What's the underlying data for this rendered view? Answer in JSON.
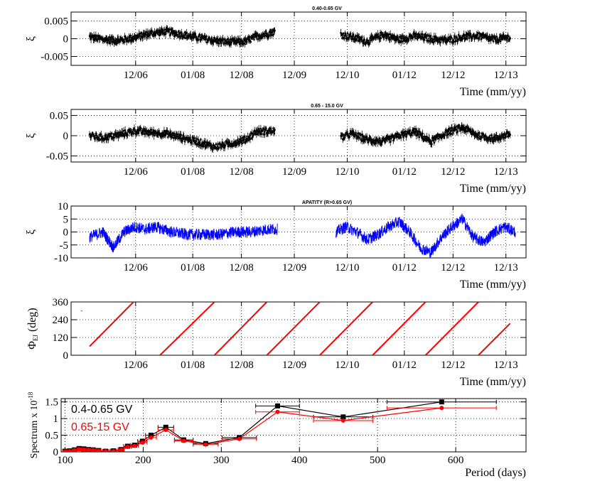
{
  "chart_data": [
    {
      "type": "scatter",
      "title": "0.40-0.65 GV",
      "xlabel": "Time (mm/yy)",
      "ylabel": "ξ",
      "xlim": [
        2005.7,
        2014.3
      ],
      "ylim": [
        -0.0075,
        0.0075
      ],
      "yticks": [
        -0.005,
        0,
        0.005
      ],
      "ytick_labels": [
        "-0.005",
        "0",
        "0.005"
      ],
      "xticks": [
        2006.92,
        2008.0,
        2008.92,
        2009.92,
        2010.92,
        2012.0,
        2012.92,
        2013.92
      ],
      "xtick_labels": [
        "12/06",
        "01/08",
        "12/08",
        "12/09",
        "12/10",
        "01/12",
        "12/12",
        "12/13"
      ],
      "grid": true,
      "color": "#000000",
      "segments": [
        {
          "x": [
            2006.05,
            2006.3,
            2006.6,
            2006.9,
            2007.2,
            2007.5,
            2007.8,
            2008.1,
            2008.4,
            2008.7,
            2009.0,
            2009.2,
            2009.55
          ],
          "y": [
            0.0005,
            -0.0002,
            -0.0005,
            0.0003,
            0.0015,
            0.002,
            0.0012,
            0.0003,
            -0.0005,
            -0.001,
            -0.0008,
            0.0006,
            0.002
          ]
        },
        {
          "x": [
            2010.8,
            2011.0,
            2011.3,
            2011.6,
            2011.9,
            2012.2,
            2012.5,
            2012.8,
            2013.1,
            2013.4,
            2013.7,
            2014.0
          ],
          "y": [
            0.0012,
            0.0005,
            -0.0008,
            0.0012,
            -0.0003,
            0.0008,
            0.0,
            -0.0005,
            0.0005,
            0.0008,
            -0.0003,
            0.0004
          ]
        }
      ]
    },
    {
      "type": "scatter",
      "title": "0.65 - 15.0 GV",
      "xlabel": "Time (mm/yy)",
      "ylabel": "ξ",
      "xlim": [
        2005.7,
        2014.3
      ],
      "ylim": [
        -0.065,
        0.065
      ],
      "yticks": [
        -0.05,
        0,
        0.05
      ],
      "ytick_labels": [
        "-0.05",
        "0",
        "0.05"
      ],
      "xticks": [
        2006.92,
        2008.0,
        2008.92,
        2009.92,
        2010.92,
        2012.0,
        2012.92,
        2013.92
      ],
      "xtick_labels": [
        "12/06",
        "01/08",
        "12/08",
        "12/09",
        "12/10",
        "01/12",
        "12/12",
        "12/13"
      ],
      "grid": true,
      "color": "#000000",
      "segments": [
        {
          "x": [
            2006.05,
            2006.3,
            2006.6,
            2006.9,
            2007.2,
            2007.5,
            2007.8,
            2008.1,
            2008.4,
            2008.7,
            2009.0,
            2009.2,
            2009.55
          ],
          "y": [
            0.0,
            -0.005,
            0.002,
            0.012,
            0.008,
            0.005,
            -0.005,
            -0.015,
            -0.028,
            -0.02,
            -0.01,
            0.01,
            0.012
          ]
        },
        {
          "x": [
            2010.8,
            2011.0,
            2011.3,
            2011.6,
            2011.9,
            2012.2,
            2012.5,
            2012.8,
            2013.1,
            2013.4,
            2013.7,
            2014.0
          ],
          "y": [
            -0.005,
            0.005,
            -0.01,
            -0.015,
            0.0,
            0.01,
            -0.015,
            0.008,
            0.02,
            0.0,
            -0.008,
            0.005
          ]
        }
      ]
    },
    {
      "type": "line",
      "title": "APATITY (R>0.65 GV)",
      "xlabel": "Time (mm/yy)",
      "ylabel": "ξ",
      "xlim": [
        2005.7,
        2014.3
      ],
      "ylim": [
        -10,
        10
      ],
      "yticks": [
        -10,
        -5,
        0,
        5,
        10
      ],
      "ytick_labels": [
        "-10",
        "-5",
        "0",
        "5",
        "10"
      ],
      "xticks": [
        2006.92,
        2008.0,
        2008.92,
        2009.92,
        2010.92,
        2012.0,
        2012.92,
        2013.92
      ],
      "xtick_labels": [
        "12/06",
        "01/08",
        "12/08",
        "12/09",
        "12/10",
        "01/12",
        "12/12",
        "12/13"
      ],
      "grid": true,
      "color": "#0000ff",
      "segments": [
        {
          "x": [
            2006.05,
            2006.3,
            2006.5,
            2006.7,
            2006.9,
            2007.1,
            2007.3,
            2007.6,
            2007.9,
            2008.2,
            2008.5,
            2008.8,
            2009.1,
            2009.4,
            2009.6
          ],
          "y": [
            -2,
            0,
            -6,
            0,
            2,
            1,
            2,
            0,
            -1,
            -1,
            -1,
            0,
            0,
            1,
            1
          ]
        },
        {
          "x": [
            2010.7,
            2010.9,
            2011.1,
            2011.3,
            2011.5,
            2011.7,
            2011.9,
            2012.1,
            2012.3,
            2012.5,
            2012.7,
            2012.9,
            2013.1,
            2013.3,
            2013.5,
            2013.7,
            2013.9,
            2014.1
          ],
          "y": [
            0,
            2,
            0,
            -3,
            -1,
            2,
            4,
            0,
            -6,
            -8,
            -2,
            2,
            5,
            -2,
            -4,
            0,
            2,
            0
          ]
        }
      ]
    },
    {
      "type": "line",
      "title": "",
      "xlabel": "Time (mm/yy)",
      "ylabel": "Φ",
      "ylabel_sub": "EJ",
      "ylabel_unit": " (deg)",
      "xlim": [
        2005.7,
        2014.3
      ],
      "ylim": [
        0,
        360
      ],
      "yticks": [
        0,
        120,
        240,
        360
      ],
      "ytick_labels": [
        "0",
        "120",
        "240",
        "360"
      ],
      "xticks": [
        2006.92,
        2008.0,
        2008.92,
        2009.92,
        2010.92,
        2012.0,
        2012.92,
        2013.92
      ],
      "xtick_labels": [
        "12/06",
        "01/08",
        "12/08",
        "12/09",
        "12/10",
        "01/12",
        "12/12",
        "12/13"
      ],
      "grid": true,
      "color": "#ff0000",
      "outlier": {
        "x": 2005.9,
        "y": 300
      },
      "lines": [
        {
          "x": [
            2006.05,
            2006.88
          ],
          "y": [
            60,
            360
          ]
        },
        {
          "x": [
            2007.38,
            2008.41
          ],
          "y": [
            0,
            360
          ]
        },
        {
          "x": [
            2008.41,
            2009.4
          ],
          "y": [
            0,
            360
          ]
        },
        {
          "x": [
            2009.4,
            2010.4
          ],
          "y": [
            0,
            360
          ]
        },
        {
          "x": [
            2010.4,
            2011.4
          ],
          "y": [
            0,
            360
          ]
        },
        {
          "x": [
            2011.4,
            2012.4
          ],
          "y": [
            0,
            360
          ]
        },
        {
          "x": [
            2012.4,
            2013.4
          ],
          "y": [
            0,
            360
          ]
        },
        {
          "x": [
            2013.4,
            2014.0
          ],
          "y": [
            0,
            215
          ]
        }
      ]
    },
    {
      "type": "line",
      "title": "",
      "xlabel": "Period (days)",
      "ylabel": "Spectrum x 10",
      "ylabel_exp": "-18",
      "xlim": [
        95,
        690
      ],
      "ylim": [
        0,
        1.6
      ],
      "xticks": [
        100,
        200,
        300,
        400,
        500,
        600
      ],
      "xtick_labels": [
        "100",
        "200",
        "300",
        "400",
        "500",
        "600"
      ],
      "yticks": [
        0,
        0.5,
        1,
        1.5
      ],
      "ytick_labels": [
        "0",
        "0.5",
        "1",
        "1.5"
      ],
      "grid": true,
      "legend": "top-left",
      "series": [
        {
          "name": "0.4-0.65 GV",
          "color": "#000000",
          "marker": "square",
          "x": [
            100,
            106,
            112,
            118,
            124,
            130,
            136,
            143,
            152,
            162,
            172,
            180,
            189,
            199,
            210,
            229,
            252,
            280,
            323,
            372,
            456,
            582
          ],
          "y": [
            0.02,
            0.03,
            0.06,
            0.1,
            0.09,
            0.07,
            0.06,
            0.04,
            0.02,
            0.03,
            0.07,
            0.17,
            0.2,
            0.32,
            0.5,
            0.74,
            0.36,
            0.25,
            0.43,
            1.38,
            1.05,
            1.5
          ],
          "xerr": [
            3,
            3,
            3,
            3,
            3,
            3,
            3,
            3,
            4,
            4,
            4,
            5,
            5,
            6,
            7,
            10,
            12,
            16,
            22,
            28,
            38,
            70
          ]
        },
        {
          "name": "0.65-15 GV",
          "color": "#ff0000",
          "marker": "circle",
          "x": [
            100,
            106,
            112,
            118,
            124,
            130,
            136,
            143,
            152,
            162,
            172,
            180,
            189,
            199,
            210,
            229,
            252,
            280,
            323,
            372,
            456,
            582
          ],
          "y": [
            0.01,
            0.02,
            0.05,
            0.08,
            0.07,
            0.06,
            0.05,
            0.03,
            0.02,
            0.02,
            0.06,
            0.15,
            0.18,
            0.28,
            0.43,
            0.66,
            0.33,
            0.22,
            0.39,
            1.2,
            0.94,
            1.32
          ],
          "xerr": [
            3,
            3,
            3,
            3,
            3,
            3,
            3,
            3,
            4,
            4,
            4,
            5,
            5,
            6,
            7,
            10,
            12,
            16,
            22,
            28,
            38,
            70
          ]
        }
      ]
    }
  ]
}
